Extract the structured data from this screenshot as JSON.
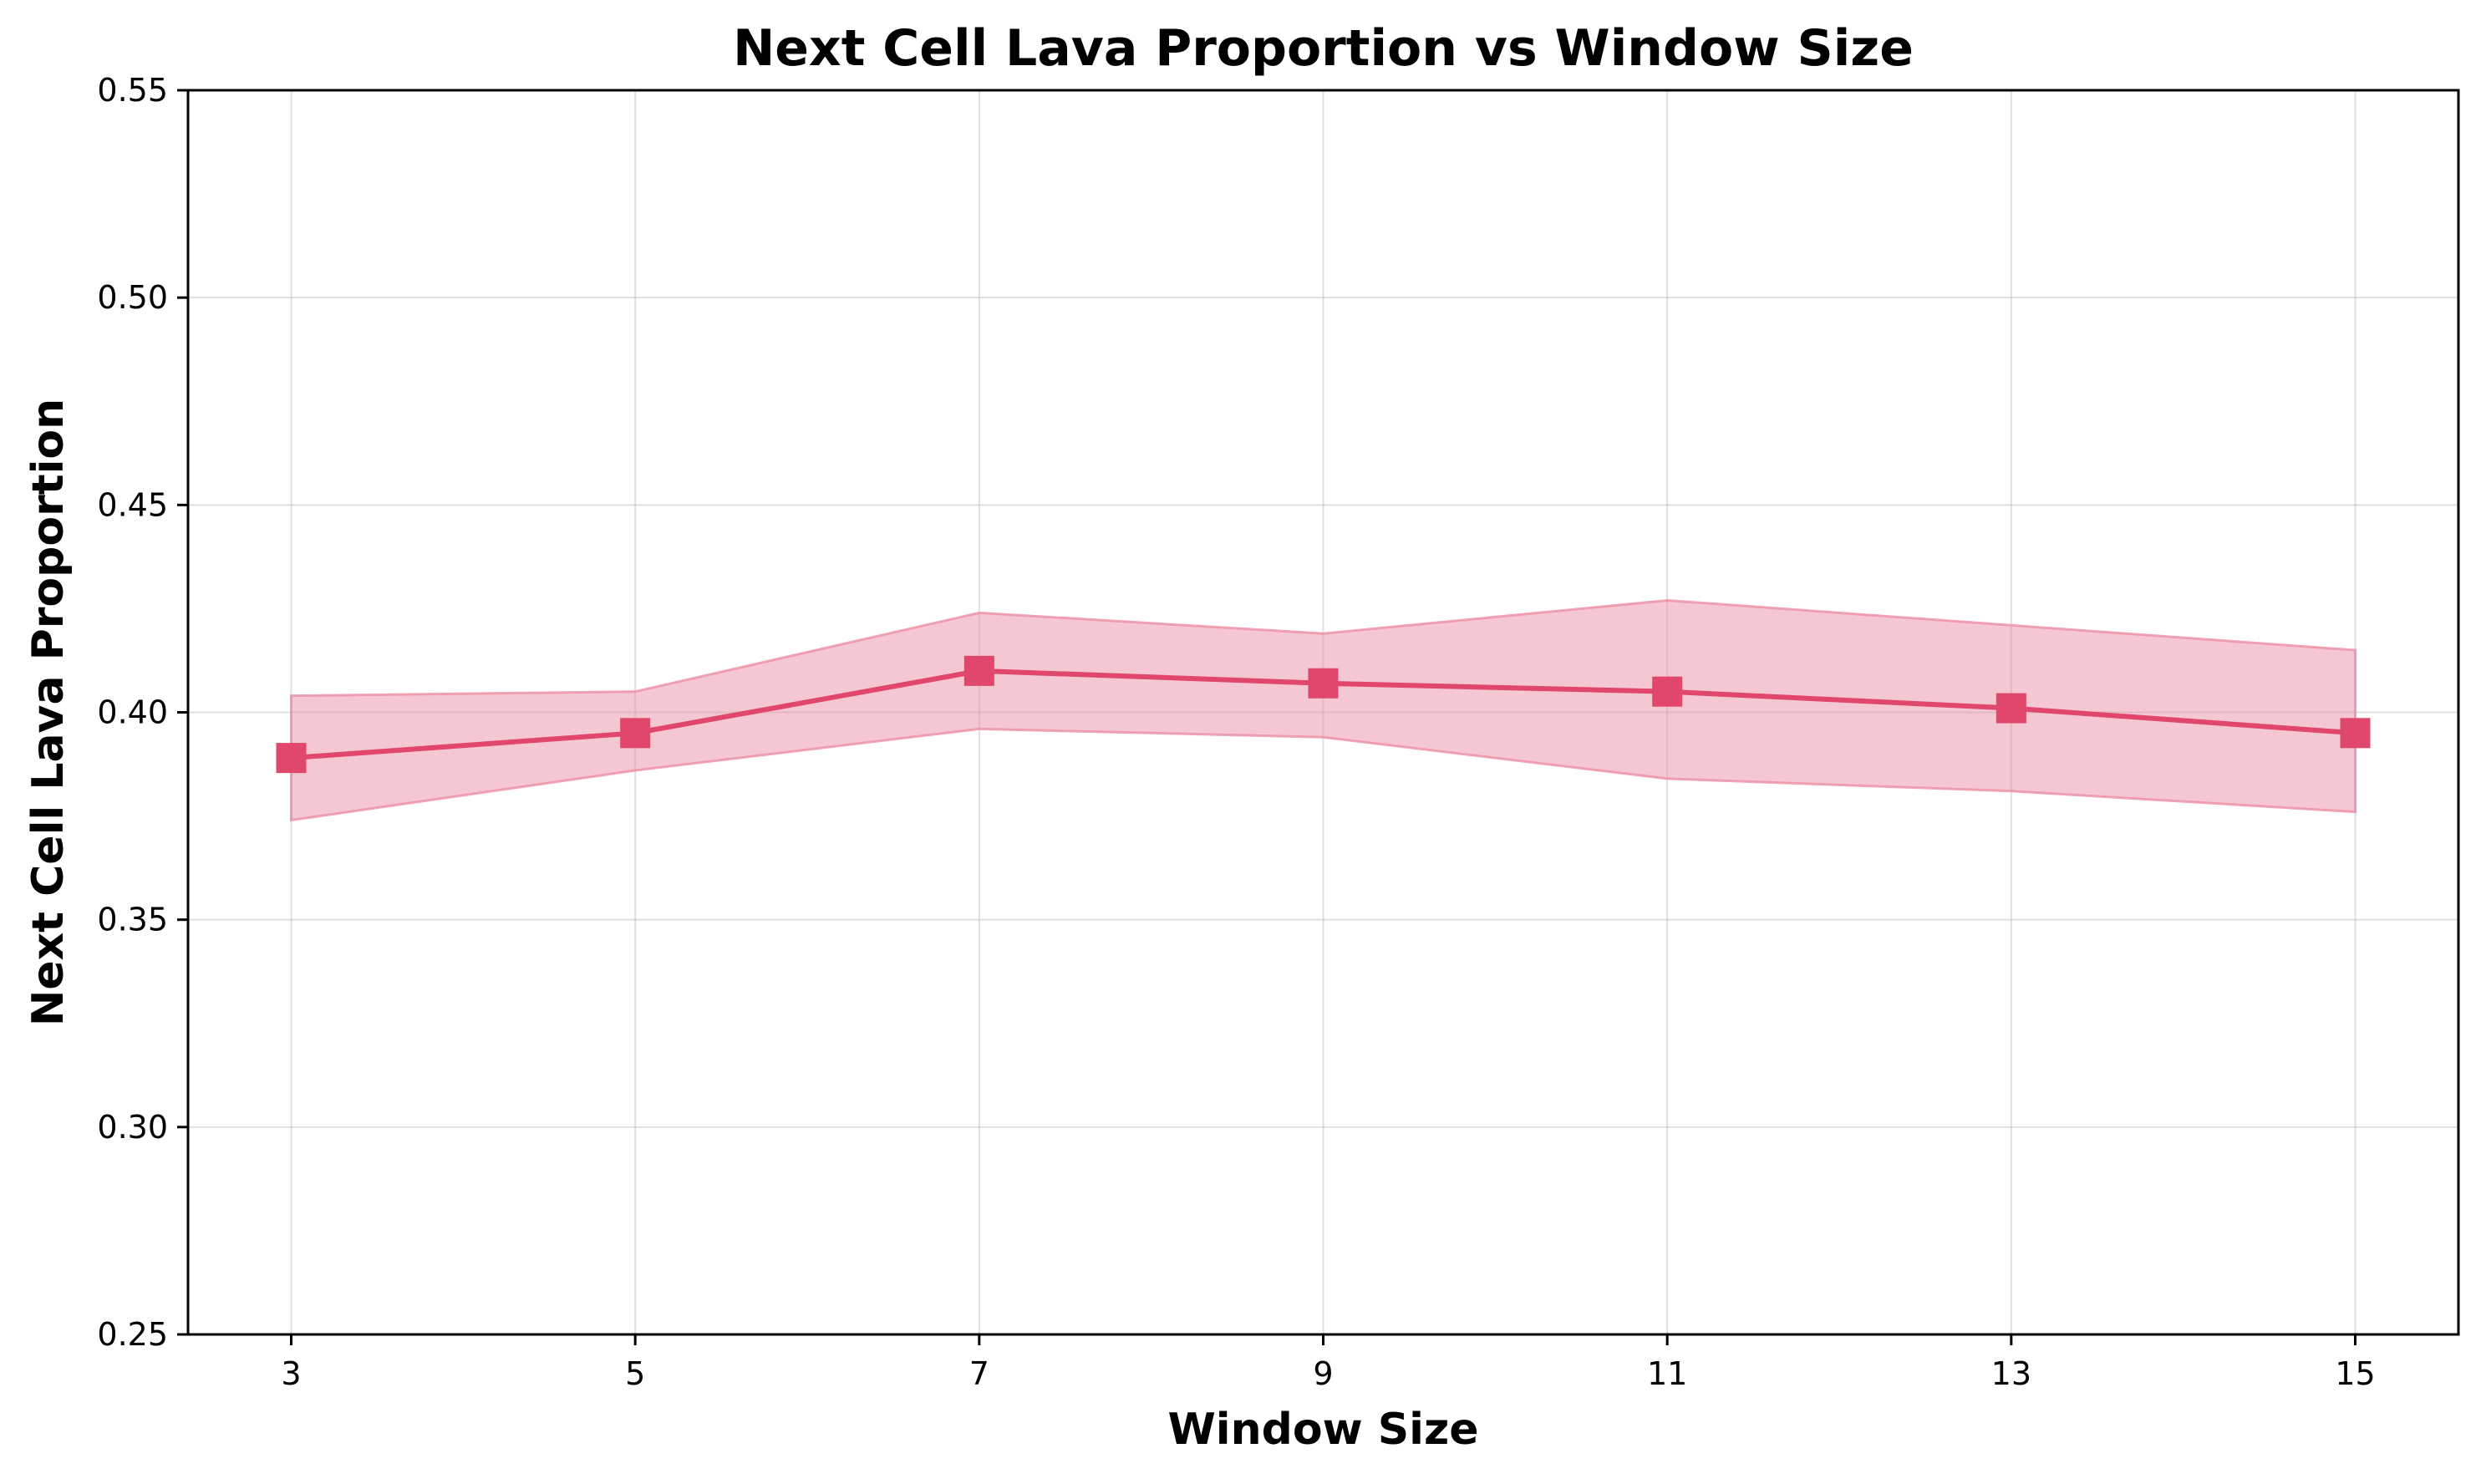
{
  "chart_data": {
    "type": "line",
    "title": "Next Cell Lava Proportion vs Window Size",
    "xlabel": "Window Size",
    "ylabel": "Next Cell Lava Proportion",
    "xlim": [
      2.4,
      15.6
    ],
    "ylim": [
      0.25,
      0.55
    ],
    "x_ticks": [
      "3",
      "5",
      "7",
      "9",
      "11",
      "13",
      "15"
    ],
    "y_ticks": [
      "0.25",
      "0.30",
      "0.35",
      "0.40",
      "0.45",
      "0.50",
      "0.55"
    ],
    "grid": true,
    "legend": "none",
    "series": [
      {
        "x": [
          3,
          5,
          7,
          9,
          11,
          13,
          15
        ],
        "values": [
          0.389,
          0.395,
          0.41,
          0.407,
          0.405,
          0.401,
          0.395
        ],
        "band_lower": [
          0.374,
          0.386,
          0.396,
          0.394,
          0.384,
          0.381,
          0.376
        ],
        "band_upper": [
          0.404,
          0.405,
          0.424,
          0.419,
          0.427,
          0.421,
          0.415
        ],
        "marker": "square",
        "color": "#E0476B",
        "band_color": "#EC8FA5"
      }
    ]
  }
}
